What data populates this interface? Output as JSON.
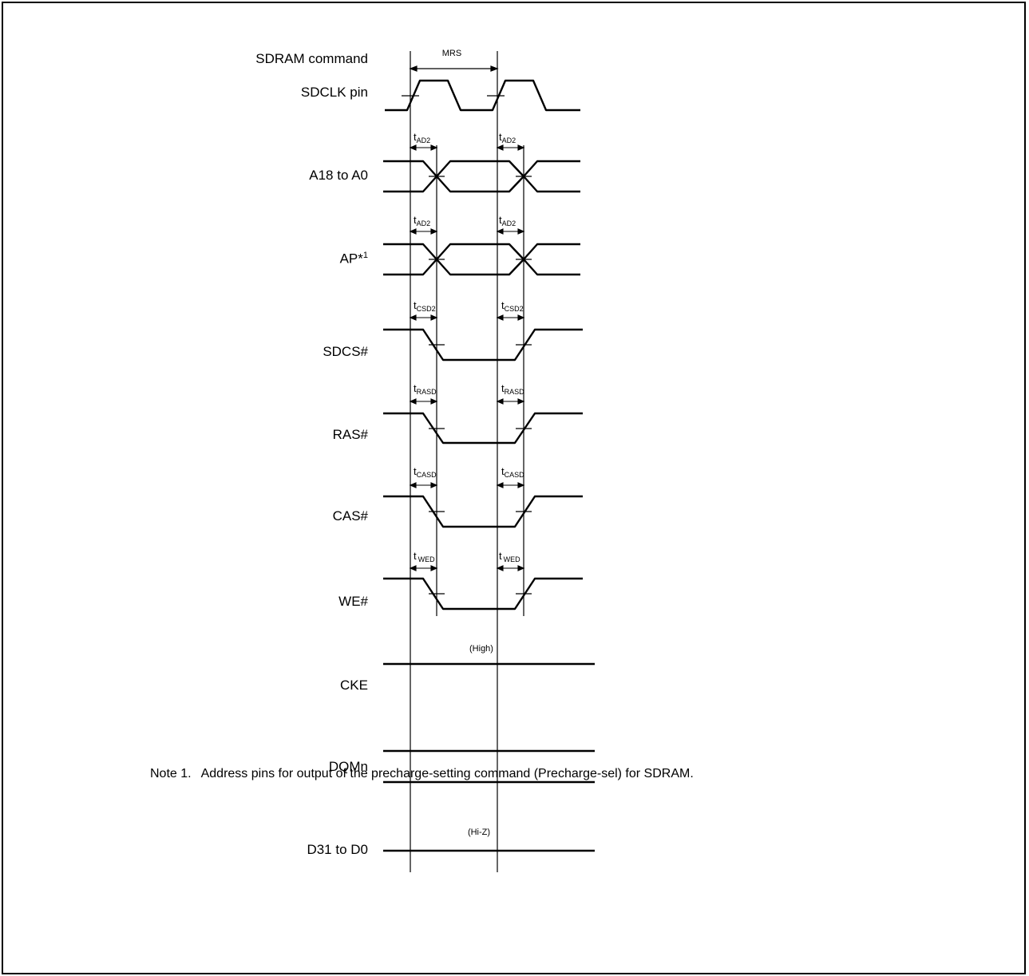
{
  "signals": {
    "sdram_command": "SDRAM command",
    "sdclk": "SDCLK pin",
    "addr": "A18 to A0",
    "ap": "AP*",
    "ap_sup": "1",
    "sdcs": "SDCS#",
    "ras": "RAS#",
    "cas": "CAS#",
    "we": "WE#",
    "cke": "CKE",
    "dqm": "DQMn",
    "data": "D31 to D0"
  },
  "annotations": {
    "mrs": "MRS",
    "high": "(High)",
    "hiz": "(Hi-Z)",
    "t_prefix": "t",
    "ad2": "AD2",
    "csd2": "CSD2",
    "rasd": "RASD",
    "casd": "CASD",
    "wed": "WED"
  },
  "note": {
    "number": "Note 1.",
    "text": "Address pins for output of the precharge-setting command (Precharge-sel) for SDRAM."
  }
}
